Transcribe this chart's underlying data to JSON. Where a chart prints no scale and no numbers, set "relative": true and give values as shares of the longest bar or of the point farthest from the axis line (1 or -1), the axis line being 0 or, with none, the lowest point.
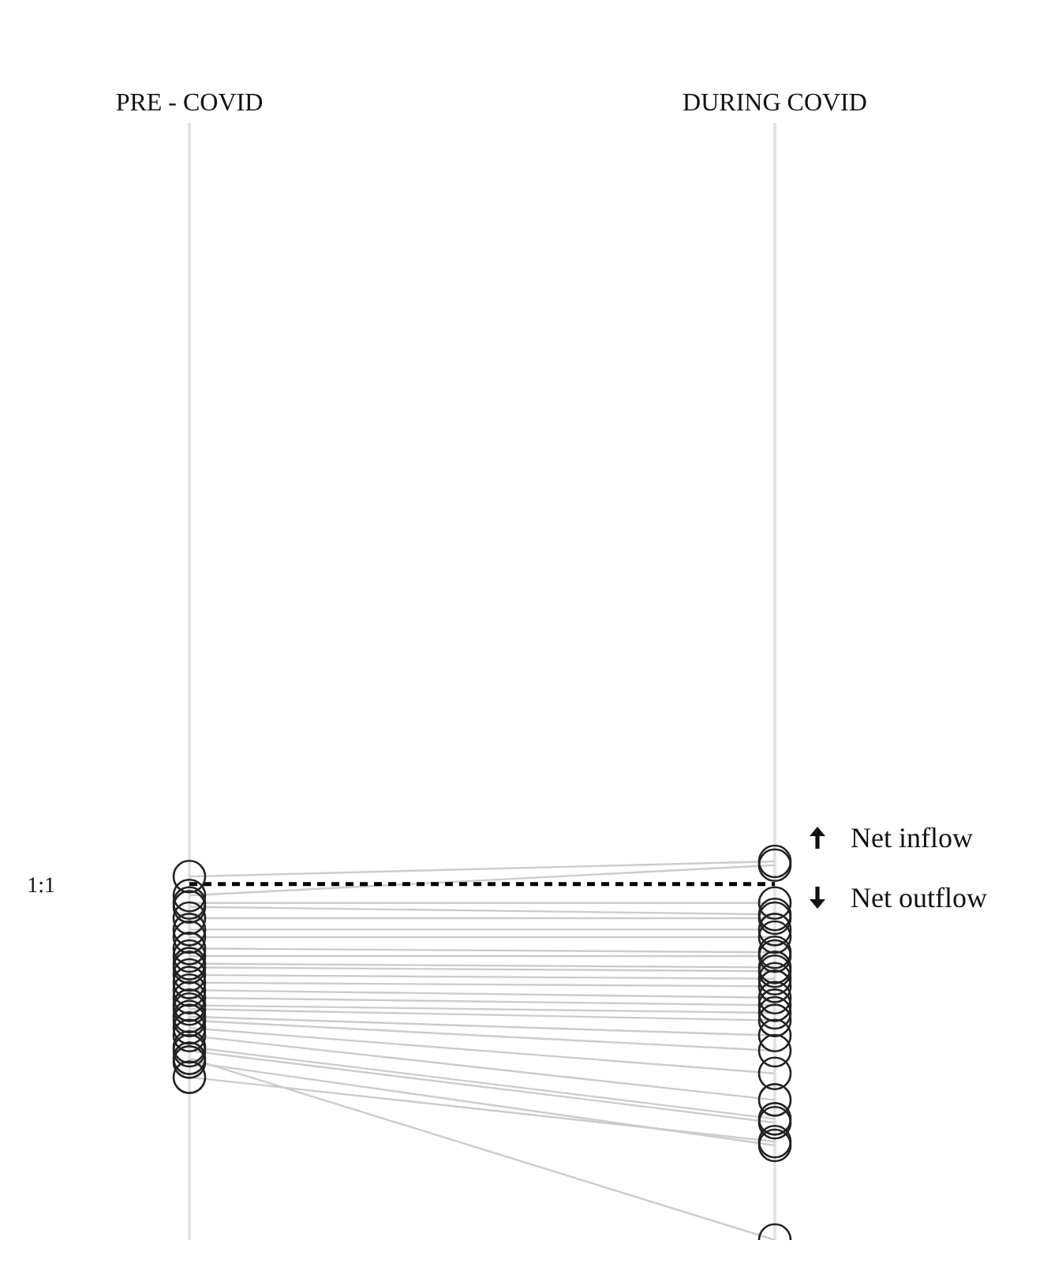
{
  "chart_data": {
    "type": "line",
    "relative": true,
    "categories": [
      "PRE - COVID",
      "DURING COVID"
    ],
    "grid": "x",
    "marker": "circle",
    "line_style": "solid",
    "series": [
      {
        "color": "#cccccc",
        "values": [
          0.96,
          1.0
        ]
      },
      {
        "color": "#cccccc",
        "values": [
          0.91,
          0.99
        ]
      },
      {
        "color": "#cccccc",
        "values": [
          0.89,
          0.89
        ]
      },
      {
        "color": "#cccccc",
        "values": [
          0.88,
          0.86
        ]
      },
      {
        "color": "#cccccc",
        "values": [
          0.85,
          0.85
        ]
      },
      {
        "color": "#cccccc",
        "values": [
          0.82,
          0.82
        ]
      },
      {
        "color": "#cccccc",
        "values": [
          0.8,
          0.8
        ]
      },
      {
        "color": "#cccccc",
        "values": [
          0.77,
          0.76
        ]
      },
      {
        "color": "#cccccc",
        "values": [
          0.75,
          0.75
        ]
      },
      {
        "color": "#cccccc",
        "values": [
          0.73,
          0.72
        ]
      },
      {
        "color": "#cccccc",
        "values": [
          0.72,
          0.71
        ]
      },
      {
        "color": "#cccccc",
        "values": [
          0.7,
          0.69
        ]
      },
      {
        "color": "#cccccc",
        "values": [
          0.68,
          0.67
        ]
      },
      {
        "color": "#cccccc",
        "values": [
          0.66,
          0.64
        ]
      },
      {
        "color": "#cccccc",
        "values": [
          0.64,
          0.62
        ]
      },
      {
        "color": "#cccccc",
        "values": [
          0.62,
          0.6
        ]
      },
      {
        "color": "#cccccc",
        "values": [
          0.61,
          0.58
        ]
      },
      {
        "color": "#cccccc",
        "values": [
          0.59,
          0.54
        ]
      },
      {
        "color": "#cccccc",
        "values": [
          0.58,
          0.5
        ]
      },
      {
        "color": "#cccccc",
        "values": [
          0.56,
          0.44
        ]
      },
      {
        "color": "#cccccc",
        "values": [
          0.54,
          0.37
        ]
      },
      {
        "color": "#cccccc",
        "values": [
          0.51,
          0.32
        ]
      },
      {
        "color": "#cccccc",
        "values": [
          0.5,
          0.31
        ]
      },
      {
        "color": "#cccccc",
        "values": [
          0.47,
          0.25
        ]
      },
      {
        "color": "#cccccc",
        "values": [
          0.43,
          0.26
        ]
      },
      {
        "color": "#cccccc",
        "values": [
          0.48,
          0.0
        ]
      }
    ],
    "ref_lines": [
      {
        "axis": "y",
        "value": 0.94,
        "label": "1:1",
        "color": "#000000",
        "line_style": "dashed"
      }
    ],
    "annotations": [
      "Net inflow",
      "Net outflow"
    ]
  }
}
